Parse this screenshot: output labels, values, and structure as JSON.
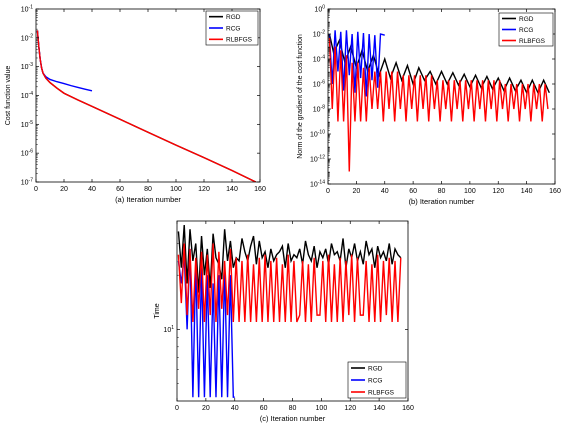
{
  "chart_data": [
    {
      "type": "line",
      "caption": "(a) Iteration number",
      "xlabel": "",
      "ylabel": "Cost function value",
      "xlim": [
        0,
        160
      ],
      "ylim": [
        1e-07,
        0.1
      ],
      "yscale": "log",
      "x_ticks": [
        "0",
        "20",
        "40",
        "60",
        "80",
        "100",
        "120",
        "140",
        "160"
      ],
      "y_ticks": [
        {
          "base": "10",
          "exp": "-7",
          "value": 1e-07
        },
        {
          "base": "10",
          "exp": "-6",
          "value": 1e-06
        },
        {
          "base": "10",
          "exp": "-5",
          "value": 1e-05
        },
        {
          "base": "10",
          "exp": "-4",
          "value": 0.0001
        },
        {
          "base": "10",
          "exp": "-3",
          "value": 0.001
        },
        {
          "base": "10",
          "exp": "-2",
          "value": 0.01
        },
        {
          "base": "10",
          "exp": "-1",
          "value": 0.1
        }
      ],
      "legend_position": "top-right",
      "series": [
        {
          "name": "RGD",
          "color": "#000000",
          "x": [
            1,
            2,
            3,
            4,
            5,
            7,
            10,
            15,
            20,
            30,
            40,
            60,
            80,
            100,
            120,
            140,
            157
          ],
          "y": [
            0.018,
            0.005,
            0.0018,
            0.0009,
            0.0006,
            0.0004,
            0.00028,
            0.00018,
            0.00012,
            7e-05,
            4.2e-05,
            1.5e-05,
            5.3e-06,
            1.9e-06,
            7e-07,
            2.5e-07,
            1e-07
          ]
        },
        {
          "name": "RCG",
          "color": "#0000ff",
          "x": [
            1,
            2,
            3,
            4,
            5,
            7,
            10,
            15,
            20,
            25,
            30,
            35,
            40
          ],
          "y": [
            0.018,
            0.005,
            0.0018,
            0.0009,
            0.0006,
            0.00045,
            0.00036,
            0.0003,
            0.00026,
            0.00022,
            0.00019,
            0.000165,
            0.000145
          ]
        },
        {
          "name": "RLBFGS",
          "color": "#ff0000",
          "x": [
            1,
            2,
            3,
            4,
            5,
            7,
            10,
            15,
            20,
            30,
            40,
            60,
            80,
            100,
            120,
            140,
            157
          ],
          "y": [
            0.018,
            0.005,
            0.0018,
            0.0009,
            0.0006,
            0.0004,
            0.00028,
            0.00018,
            0.00012,
            7e-05,
            4.2e-05,
            1.5e-05,
            5.3e-06,
            1.9e-06,
            7e-07,
            2.5e-07,
            1e-07
          ]
        }
      ]
    },
    {
      "type": "line",
      "caption": "(b) Iteration number",
      "xlabel": "",
      "ylabel": "Norm of the gradient of the cost function",
      "xlim": [
        0,
        160
      ],
      "ylim": [
        1e-14,
        1
      ],
      "yscale": "log",
      "x_ticks": [
        "0",
        "20",
        "40",
        "60",
        "80",
        "100",
        "120",
        "140",
        "160"
      ],
      "y_ticks": [
        {
          "base": "10",
          "exp": "-14",
          "value": 1e-14
        },
        {
          "base": "10",
          "exp": "-12",
          "value": 1e-12
        },
        {
          "base": "10",
          "exp": "-10",
          "value": 1e-10
        },
        {
          "base": "10",
          "exp": "-8",
          "value": 1e-08
        },
        {
          "base": "10",
          "exp": "-6",
          "value": 1e-06
        },
        {
          "base": "10",
          "exp": "-4",
          "value": 0.0001
        },
        {
          "base": "10",
          "exp": "-2",
          "value": 0.01
        },
        {
          "base": "10",
          "exp": "0",
          "value": 1
        }
      ],
      "legend_position": "top-right",
      "series": [
        {
          "name": "RGD",
          "color": "#000000",
          "x": [
            1,
            4,
            8,
            12,
            16,
            20,
            24,
            28,
            32,
            36,
            40,
            44,
            48,
            52,
            56,
            60,
            64,
            68,
            72,
            76,
            80,
            84,
            88,
            92,
            96,
            100,
            104,
            108,
            112,
            116,
            120,
            124,
            128,
            132,
            136,
            140,
            144,
            148,
            152,
            156
          ],
          "y": [
            0.01,
            0.0003,
            0.003,
            5e-05,
            0.001,
            2e-05,
            0.0005,
            1e-05,
            0.0002,
            5e-06,
            0.0001,
            3e-06,
            5e-05,
            2e-06,
            3e-05,
            1e-06,
            2e-05,
            2e-06,
            1e-05,
            1e-06,
            1e-05,
            1e-06,
            8e-06,
            8e-07,
            6e-06,
            6e-07,
            5e-06,
            5e-07,
            4e-06,
            4e-07,
            3e-06,
            3e-07,
            3e-06,
            3e-07,
            2e-06,
            2e-07,
            2e-06,
            2e-07,
            2e-06,
            2e-07
          ]
        },
        {
          "name": "RCG",
          "color": "#0000ff",
          "x": [
            1,
            3,
            5,
            7,
            9,
            11,
            13,
            15,
            17,
            19,
            21,
            23,
            25,
            27,
            29,
            31,
            33,
            35,
            37,
            40
          ],
          "y": [
            0.01,
            1e-06,
            0.02,
            1e-05,
            0.015,
            3e-07,
            0.02,
            5e-06,
            0.01,
            2e-07,
            0.015,
            3e-06,
            0.012,
            1e-07,
            0.01,
            2e-06,
            0.008,
            5e-07,
            0.01,
            0.008
          ]
        },
        {
          "name": "RLBFGS",
          "color": "#ff0000",
          "x": [
            1,
            3,
            5,
            7,
            9,
            11,
            13,
            15,
            17,
            19,
            21,
            23,
            25,
            27,
            29,
            31,
            33,
            35,
            37,
            39,
            41,
            43,
            45,
            47,
            49,
            51,
            53,
            55,
            57,
            59,
            61,
            63,
            65,
            67,
            69,
            71,
            73,
            75,
            77,
            79,
            81,
            83,
            85,
            87,
            89,
            91,
            93,
            95,
            97,
            99,
            101,
            103,
            105,
            107,
            109,
            111,
            113,
            115,
            117,
            119,
            121,
            123,
            125,
            127,
            129,
            131,
            133,
            135,
            137,
            139,
            141,
            143,
            145,
            147,
            149,
            151,
            153,
            155
          ],
          "y": [
            0.005,
            1e-08,
            0.001,
            1e-09,
            0.0005,
            1e-09,
            0.0002,
            1e-13,
            5e-05,
            1e-09,
            5e-05,
            1e-09,
            2e-05,
            1e-09,
            2e-05,
            1e-08,
            1e-05,
            1e-08,
            1e-05,
            1e-09,
            1e-05,
            1e-08,
            1e-05,
            1e-09,
            1e-05,
            1e-08,
            5e-06,
            1e-09,
            5e-06,
            1e-08,
            5e-06,
            1e-09,
            5e-06,
            1e-08,
            5e-06,
            1e-09,
            5e-06,
            1e-08,
            2e-06,
            1e-09,
            2e-06,
            1e-08,
            2e-06,
            1e-09,
            2e-06,
            1e-08,
            2e-06,
            1e-09,
            2e-06,
            1e-08,
            2e-06,
            1e-09,
            2e-06,
            1e-08,
            2e-06,
            1e-09,
            2e-06,
            1e-08,
            2e-06,
            1e-09,
            2e-06,
            1e-08,
            1e-06,
            1e-09,
            1e-06,
            1e-08,
            1e-06,
            1e-09,
            1e-06,
            1e-08,
            1e-06,
            1e-09,
            1e-06,
            1e-08,
            1e-06,
            1e-09,
            1e-06,
            1e-08
          ]
        }
      ]
    },
    {
      "type": "line",
      "caption": "(c) Iteration number",
      "xlabel": "",
      "ylabel": "Time",
      "xlim": [
        0,
        160
      ],
      "ylim": [
        4,
        40
      ],
      "yscale": "log",
      "x_ticks": [
        "0",
        "20",
        "40",
        "60",
        "80",
        "100",
        "120",
        "140",
        "160"
      ],
      "y_ticks": [
        {
          "base": "10",
          "exp": "1",
          "value": 10
        }
      ],
      "legend_position": "bottom-right",
      "series": [
        {
          "name": "RGD",
          "color": "#000000",
          "x": [
            1,
            3,
            5,
            7,
            9,
            11,
            13,
            15,
            17,
            19,
            21,
            23,
            25,
            27,
            29,
            31,
            33,
            35,
            37,
            39,
            41,
            43,
            45,
            47,
            49,
            51,
            53,
            55,
            57,
            59,
            61,
            63,
            65,
            67,
            69,
            71,
            73,
            75,
            77,
            79,
            81,
            83,
            85,
            87,
            89,
            91,
            93,
            95,
            97,
            99,
            101,
            103,
            105,
            107,
            109,
            111,
            113,
            115,
            117,
            119,
            121,
            123,
            125,
            127,
            129,
            131,
            133,
            135,
            137,
            139,
            141,
            143,
            145,
            147,
            149,
            151,
            153,
            155
          ],
          "y": [
            35,
            22,
            38,
            18,
            36,
            24,
            30,
            16,
            33,
            20,
            28,
            17,
            34,
            25,
            23,
            19,
            36,
            24,
            31,
            22,
            25,
            24,
            32,
            27,
            24,
            29,
            33,
            23,
            31,
            25,
            27,
            22,
            28,
            24,
            26,
            27,
            29,
            22,
            30,
            24,
            26,
            25,
            28,
            23,
            31,
            26,
            24,
            29,
            22,
            27,
            25,
            28,
            23,
            30,
            26,
            27,
            24,
            32,
            22,
            28,
            25,
            30,
            24,
            27,
            23,
            31,
            26,
            28,
            22,
            29,
            25,
            27,
            24,
            30,
            23,
            28,
            26,
            25
          ]
        },
        {
          "name": "RCG",
          "color": "#0000ff",
          "x": [
            1,
            3,
            5,
            7,
            9,
            11,
            13,
            15,
            17,
            19,
            21,
            23,
            25,
            27,
            29,
            31,
            33,
            35,
            37,
            39,
            40
          ],
          "y": [
            24,
            18,
            26,
            10,
            28,
            4.2,
            24,
            4.2,
            22,
            4.2,
            20,
            4.2,
            18,
            4.2,
            20,
            4.2,
            22,
            4.2,
            20,
            4.2,
            4.2
          ]
        },
        {
          "name": "RLBFGS",
          "color": "#ff0000",
          "x": [
            1,
            3,
            5,
            7,
            9,
            11,
            13,
            15,
            17,
            19,
            21,
            23,
            25,
            27,
            29,
            31,
            33,
            35,
            37,
            39,
            41,
            43,
            45,
            47,
            49,
            51,
            53,
            55,
            57,
            59,
            61,
            63,
            65,
            67,
            69,
            71,
            73,
            75,
            77,
            79,
            81,
            83,
            85,
            87,
            89,
            91,
            93,
            95,
            97,
            99,
            101,
            103,
            105,
            107,
            109,
            111,
            113,
            115,
            117,
            119,
            121,
            123,
            125,
            127,
            129,
            131,
            133,
            135,
            137,
            139,
            141,
            143,
            145,
            147,
            149,
            151,
            153,
            155
          ],
          "y": [
            26,
            14,
            30,
            12,
            28,
            11,
            25,
            13,
            27,
            11,
            26,
            12,
            30,
            11,
            27,
            13,
            24,
            12,
            28,
            11,
            25,
            11,
            24,
            11,
            26,
            11,
            23,
            11,
            25,
            11,
            26,
            11,
            24,
            11,
            25,
            11,
            23,
            11,
            26,
            11,
            24,
            11,
            12,
            24,
            11,
            23,
            11,
            25,
            12,
            12,
            24,
            11,
            26,
            11,
            23,
            11,
            25,
            11,
            24,
            12,
            26,
            11,
            25,
            12,
            12,
            24,
            11,
            23,
            11,
            26,
            11,
            24,
            12,
            25,
            11,
            24,
            11,
            25
          ]
        }
      ]
    }
  ]
}
